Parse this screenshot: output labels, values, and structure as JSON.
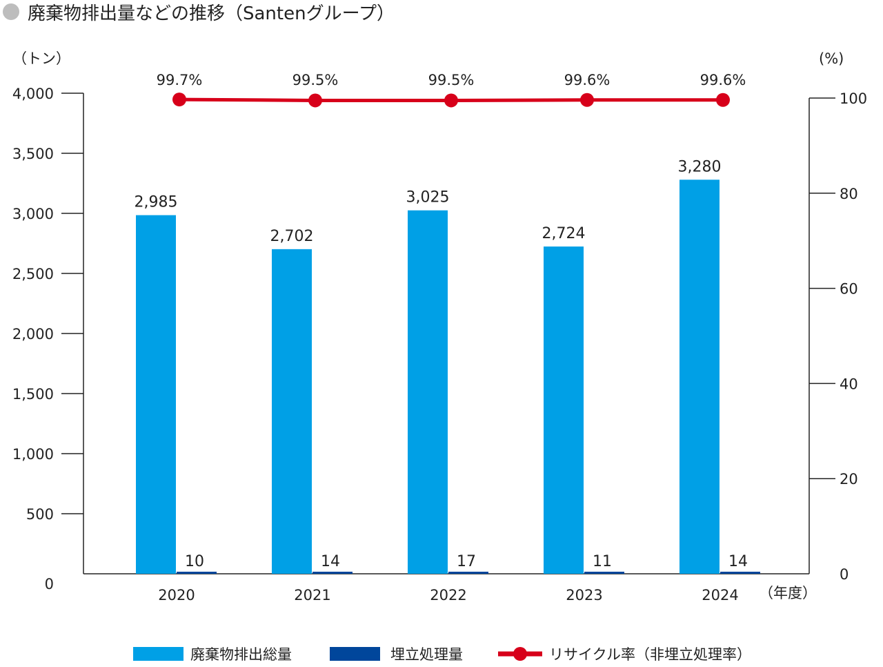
{
  "colors": {
    "total": "#00a0e6",
    "landfill": "#00469b",
    "recycle": "#d7001a",
    "bullet": "#bdbdbd"
  },
  "chart_data": {
    "type": "bar",
    "title": "廃棄物排出量などの推移（Santenグループ）",
    "ylabel": "（トン）",
    "y2label": "(%)",
    "xlabel": "（年度）",
    "ylim": [
      0,
      4000
    ],
    "y2lim": [
      0,
      100
    ],
    "yticks": [
      "0",
      "500",
      "1,000",
      "1,500",
      "2,000",
      "2,500",
      "3,000",
      "3,500",
      "4,000"
    ],
    "y2ticks": [
      "0",
      "20",
      "40",
      "60",
      "80",
      "100"
    ],
    "categories": [
      "2020",
      "2021",
      "2022",
      "2023",
      "2024"
    ],
    "series": [
      {
        "name": "廃棄物排出総量",
        "type": "bar",
        "axis": "left",
        "values": [
          2985,
          2702,
          3025,
          2724,
          3280
        ],
        "labels": [
          "2,985",
          "2,702",
          "3,025",
          "2,724",
          "3,280"
        ]
      },
      {
        "name": "埋立処理量",
        "type": "bar",
        "axis": "left",
        "values": [
          10,
          14,
          17,
          11,
          14
        ],
        "labels": [
          "10",
          "14",
          "17",
          "11",
          "14"
        ]
      },
      {
        "name": "リサイクル率（非埋立処理率）",
        "type": "line",
        "axis": "right",
        "values": [
          99.7,
          99.5,
          99.5,
          99.6,
          99.6
        ],
        "labels": [
          "99.7%",
          "99.5%",
          "99.5%",
          "99.6%",
          "99.6%"
        ]
      }
    ],
    "legend": "bottom"
  }
}
